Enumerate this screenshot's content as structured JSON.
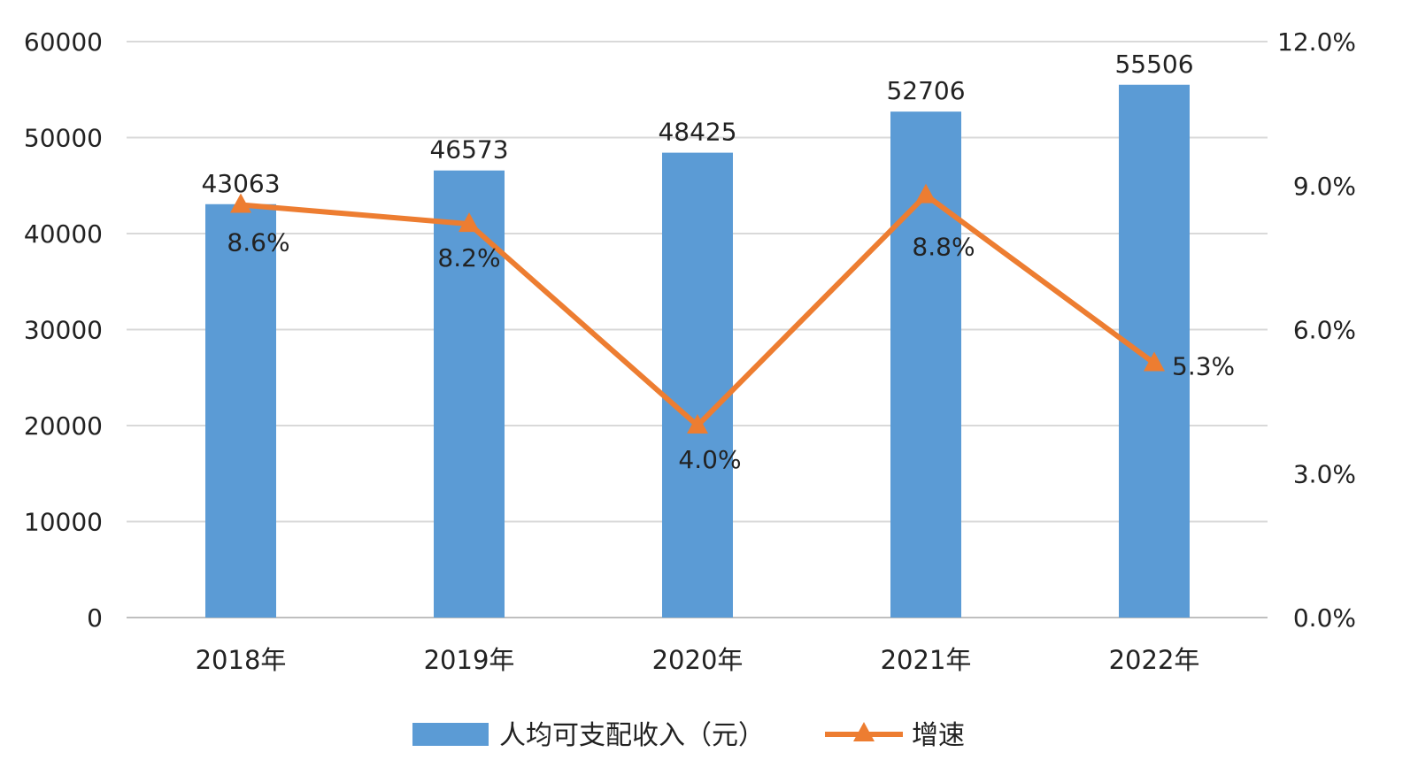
{
  "chart_data": {
    "type": "bar",
    "title": "",
    "categories": [
      "2018年",
      "2019年",
      "2020年",
      "2021年",
      "2022年"
    ],
    "series": [
      {
        "name": "人均可支配收入（元）",
        "type": "bar",
        "axis": "left",
        "values": [
          43063,
          46573,
          48425,
          52706,
          55506
        ],
        "value_labels": [
          "43063",
          "46573",
          "48425",
          "52706",
          "55506"
        ]
      },
      {
        "name": "增速",
        "type": "line",
        "axis": "right",
        "marker": "triangle",
        "values": [
          8.6,
          8.2,
          4.0,
          8.8,
          5.3
        ],
        "value_labels": [
          "8.6%",
          "8.2%",
          "4.0%",
          "8.8%",
          "5.3%"
        ]
      }
    ],
    "y_left": {
      "lim": [
        0,
        60000
      ],
      "ticks": [
        0,
        10000,
        20000,
        30000,
        40000,
        50000,
        60000
      ],
      "tick_labels": [
        "0",
        "10000",
        "20000",
        "30000",
        "40000",
        "50000",
        "60000"
      ]
    },
    "y_right": {
      "lim": [
        0,
        12
      ],
      "unit": "%",
      "ticks": [
        0,
        3,
        6,
        9,
        12
      ],
      "tick_labels": [
        "0.0%",
        "3.0%",
        "6.0%",
        "9.0%",
        "12.0%"
      ]
    },
    "grid": true,
    "legend_position": "bottom",
    "colors": {
      "bar": "#5b9bd5",
      "line": "#ed7d31",
      "grid": "#d9d9d9",
      "axis_text": "#222222"
    }
  }
}
